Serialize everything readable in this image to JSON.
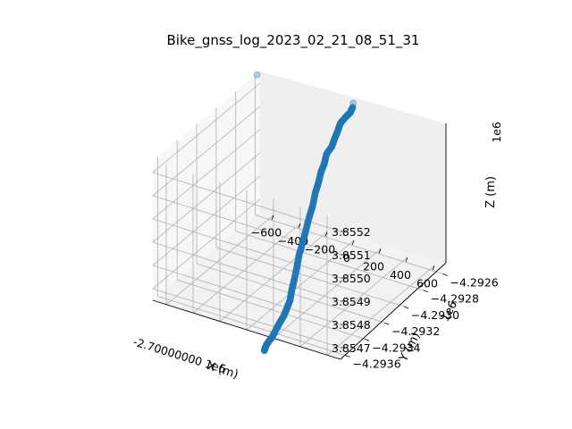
{
  "chart_data": {
    "type": "scatter",
    "projection": "3d",
    "title": "Bike_gnss_log_2023_02_21_08_51_31",
    "grid": true,
    "legend": "none",
    "xlabel": "X (m)",
    "ylabel": "Y (m)",
    "zlabel": "Z (m)",
    "x_offset_text": "-2.70000000 1e6",
    "y_offset_text": "1e6",
    "z_offset_text": "1e6",
    "x_ticks": [
      "−600",
      "−400",
      "−200",
      "0",
      "200",
      "400",
      "600"
    ],
    "y_ticks": [
      "−4.2936",
      "−4.2934",
      "−4.2932",
      "−4.2930",
      "−4.2928",
      "−4.2926"
    ],
    "z_ticks": [
      "3.8547",
      "3.8548",
      "3.8549",
      "3.8550",
      "3.8551",
      "3.8552"
    ],
    "marker_color": "#1f77b4",
    "series": [
      {
        "x": [
          -10,
          -5,
          -15,
          -20,
          -12,
          -8,
          -5,
          -15,
          -10,
          -5,
          5,
          10,
          20,
          30,
          40,
          55,
          65,
          85,
          100,
          110,
          120,
          125,
          125,
          120,
          115,
          110,
          105,
          105,
          110
        ],
        "y": [
          -4.29255,
          -4.29258,
          -4.29262,
          -4.29266,
          -4.2927,
          -4.29274,
          -4.29277,
          -4.29281,
          -4.29284,
          -4.29288,
          -4.29292,
          -4.29296,
          -4.293,
          -4.29305,
          -4.2931,
          -4.29315,
          -4.2932,
          -4.29325,
          -4.2933,
          -4.29334,
          -4.29337,
          -4.29341,
          -4.29344,
          -4.29348,
          -4.29351,
          -4.29354,
          -4.29357,
          -4.2936,
          -4.29362
        ],
        "z": [
          3.85522,
          3.85521,
          3.8552,
          3.85519,
          3.85517,
          3.85515,
          3.85513,
          3.85511,
          3.85508,
          3.85506,
          3.85503,
          3.855,
          3.85496,
          3.85493,
          3.85489,
          3.85486,
          3.85483,
          3.8548,
          3.85476,
          3.85473,
          3.8547,
          3.85468,
          3.85466,
          3.85464,
          3.85462,
          3.8546,
          3.85459,
          3.85458,
          3.85457
        ]
      }
    ],
    "outliers": {
      "x": [
        -650
      ],
      "y": [
        -4.29265
      ],
      "z": [
        3.85528
      ]
    }
  }
}
